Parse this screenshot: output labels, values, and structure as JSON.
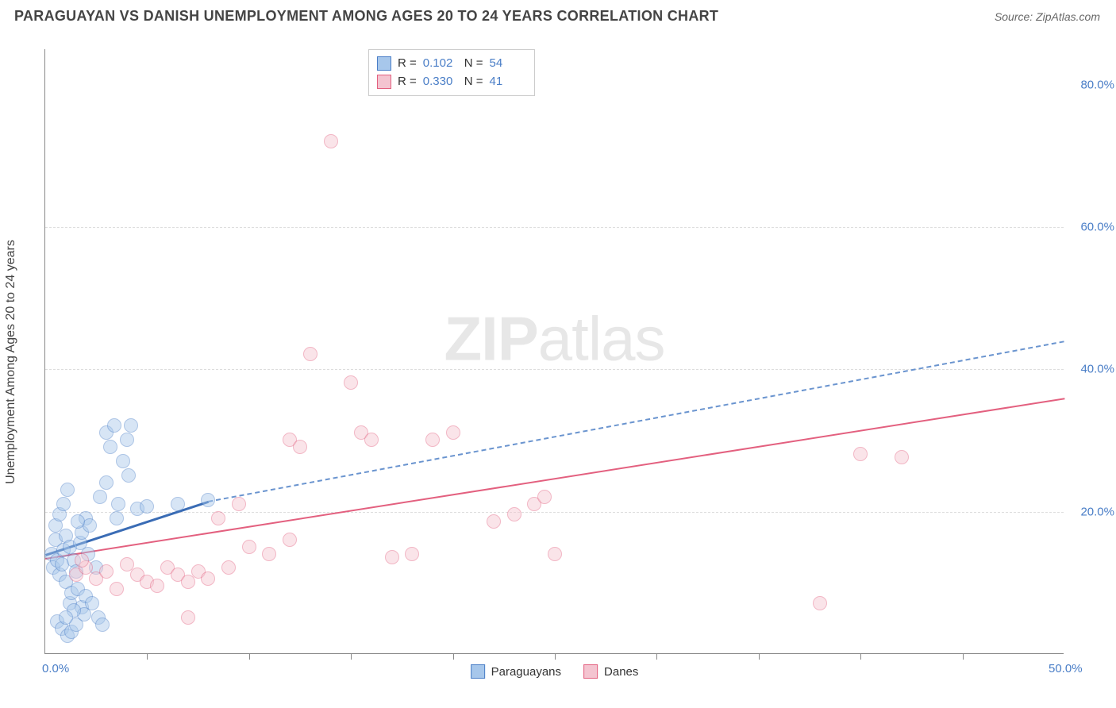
{
  "header": {
    "title": "PARAGUAYAN VS DANISH UNEMPLOYMENT AMONG AGES 20 TO 24 YEARS CORRELATION CHART",
    "source": "Source: ZipAtlas.com"
  },
  "chart": {
    "type": "scatter",
    "ylabel": "Unemployment Among Ages 20 to 24 years",
    "watermark": "ZIPatlas",
    "xlim": [
      0,
      50
    ],
    "ylim": [
      0,
      85
    ],
    "xtick_labels": [
      {
        "pos": 0,
        "label": "0.0%"
      },
      {
        "pos": 50,
        "label": "50.0%"
      }
    ],
    "xtick_marks": [
      5,
      10,
      15,
      20,
      25,
      30,
      35,
      40,
      45
    ],
    "ytick_labels": [
      {
        "pos": 20,
        "label": "20.0%"
      },
      {
        "pos": 40,
        "label": "40.0%"
      },
      {
        "pos": 60,
        "label": "60.0%"
      },
      {
        "pos": 80,
        "label": "80.0%"
      }
    ],
    "grid_at": [
      20,
      40,
      60
    ],
    "background_color": "#ffffff",
    "grid_color": "#dddddd",
    "axis_color": "#888888",
    "tick_label_color": "#4a7ec7",
    "marker_radius": 9,
    "marker_opacity": 0.45,
    "series": {
      "paraguayans": {
        "label": "Paraguayans",
        "fill": "#a7c7eb",
        "stroke": "#4a7ec7",
        "points": [
          [
            0.3,
            14
          ],
          [
            0.4,
            12
          ],
          [
            0.5,
            16
          ],
          [
            0.6,
            13
          ],
          [
            0.7,
            11
          ],
          [
            0.8,
            12.5
          ],
          [
            0.9,
            14.5
          ],
          [
            1.0,
            10
          ],
          [
            1.0,
            16.5
          ],
          [
            1.2,
            15
          ],
          [
            1.2,
            7
          ],
          [
            1.3,
            8.5
          ],
          [
            1.4,
            13
          ],
          [
            1.5,
            11.5
          ],
          [
            1.6,
            9
          ],
          [
            1.7,
            15.5
          ],
          [
            1.8,
            17
          ],
          [
            1.8,
            6.5
          ],
          [
            2.0,
            8
          ],
          [
            2.0,
            19
          ],
          [
            2.2,
            18
          ],
          [
            2.3,
            7
          ],
          [
            2.5,
            12
          ],
          [
            2.6,
            5
          ],
          [
            2.8,
            4
          ],
          [
            3.0,
            31
          ],
          [
            3.2,
            29
          ],
          [
            3.4,
            32
          ],
          [
            3.5,
            19
          ],
          [
            3.6,
            21
          ],
          [
            3.8,
            27
          ],
          [
            4.0,
            30
          ],
          [
            4.1,
            25
          ],
          [
            4.2,
            32
          ],
          [
            0.6,
            4.5
          ],
          [
            0.8,
            3.5
          ],
          [
            1.1,
            2.5
          ],
          [
            1.3,
            3
          ],
          [
            1.5,
            4
          ],
          [
            1.9,
            5.5
          ],
          [
            0.5,
            18
          ],
          [
            0.7,
            19.5
          ],
          [
            0.9,
            21
          ],
          [
            1.1,
            23
          ],
          [
            3.0,
            24
          ],
          [
            2.7,
            22
          ],
          [
            1.6,
            18.5
          ],
          [
            1.4,
            6
          ],
          [
            1.0,
            5
          ],
          [
            2.1,
            14
          ],
          [
            4.5,
            20.3
          ],
          [
            5.0,
            20.6
          ],
          [
            6.5,
            21
          ],
          [
            8.0,
            21.5
          ]
        ]
      },
      "danes": {
        "label": "Danes",
        "fill": "#f4c4d0",
        "stroke": "#e3607f",
        "points": [
          [
            1.5,
            11
          ],
          [
            2.0,
            12
          ],
          [
            2.5,
            10.5
          ],
          [
            3.0,
            11.5
          ],
          [
            3.5,
            9
          ],
          [
            4.0,
            12.5
          ],
          [
            4.5,
            11
          ],
          [
            5.0,
            10
          ],
          [
            5.5,
            9.5
          ],
          [
            6.0,
            12
          ],
          [
            6.5,
            11
          ],
          [
            7.0,
            10
          ],
          [
            7.0,
            5
          ],
          [
            7.5,
            11.5
          ],
          [
            8.0,
            10.5
          ],
          [
            8.5,
            19
          ],
          [
            9.0,
            12
          ],
          [
            9.5,
            21
          ],
          [
            10.0,
            15
          ],
          [
            11.0,
            14
          ],
          [
            12.0,
            16
          ],
          [
            12.0,
            30
          ],
          [
            12.5,
            29
          ],
          [
            13.0,
            42
          ],
          [
            14.0,
            72
          ],
          [
            15.0,
            38
          ],
          [
            15.5,
            31
          ],
          [
            16.0,
            30
          ],
          [
            17.0,
            13.5
          ],
          [
            18.0,
            14
          ],
          [
            19.0,
            30
          ],
          [
            20.0,
            31
          ],
          [
            22.0,
            18.5
          ],
          [
            23.0,
            19.5
          ],
          [
            24.0,
            21
          ],
          [
            24.5,
            22
          ],
          [
            25.0,
            14
          ],
          [
            38.0,
            7
          ],
          [
            40.0,
            28
          ],
          [
            42.0,
            27.5
          ],
          [
            1.8,
            13
          ]
        ]
      }
    },
    "trend_lines": {
      "blue_solid": {
        "color": "#3a6cb5",
        "dash": "solid",
        "width": 3,
        "x1": 0,
        "y1": 14,
        "x2": 8,
        "y2": 21.5
      },
      "blue_dash": {
        "color": "#6a94cf",
        "dash": "8 6",
        "width": 2,
        "x1": 8,
        "y1": 21.5,
        "x2": 50,
        "y2": 44
      },
      "pink_solid": {
        "color": "#e3607f",
        "dash": "solid",
        "width": 2.5,
        "x1": 0,
        "y1": 13.5,
        "x2": 50,
        "y2": 36
      }
    },
    "stats_box": {
      "rows": [
        {
          "swatch": "paraguayans",
          "r_label": "R =",
          "r": "0.102",
          "n_label": "N =",
          "n": "54"
        },
        {
          "swatch": "danes",
          "r_label": "R =",
          "r": "0.330",
          "n_label": "N =",
          "n": "41"
        }
      ]
    },
    "bottom_legend": [
      {
        "swatch": "paraguayans",
        "label": "Paraguayans"
      },
      {
        "swatch": "danes",
        "label": "Danes"
      }
    ]
  }
}
